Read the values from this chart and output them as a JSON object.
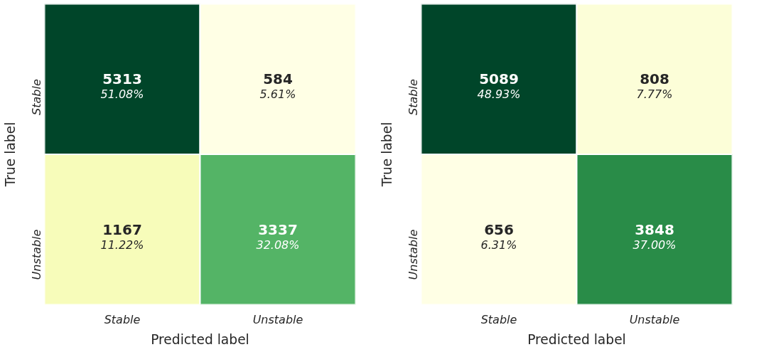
{
  "chart_data": [
    {
      "type": "heatmap",
      "xlabel": "Predicted label",
      "ylabel": "True label",
      "categories": [
        "Stable",
        "Unstable"
      ],
      "y_categories": [
        "Stable",
        "Unstable"
      ],
      "cells": [
        [
          5313,
          584
        ],
        [
          1167,
          3337
        ]
      ],
      "data_labels": true,
      "annotations": [
        "51.08%",
        "5.61%",
        "11.22%",
        "32.08%"
      ]
    },
    {
      "type": "heatmap",
      "xlabel": "Predicted label",
      "ylabel": "True label",
      "categories": [
        "Stable",
        "Unstable"
      ],
      "y_categories": [
        "Stable",
        "Unstable"
      ],
      "cells": [
        [
          5089,
          808
        ],
        [
          656,
          3848
        ]
      ],
      "data_labels": true,
      "annotations": [
        "48.93%",
        "7.77%",
        "6.31%",
        "37.00%"
      ]
    }
  ]
}
